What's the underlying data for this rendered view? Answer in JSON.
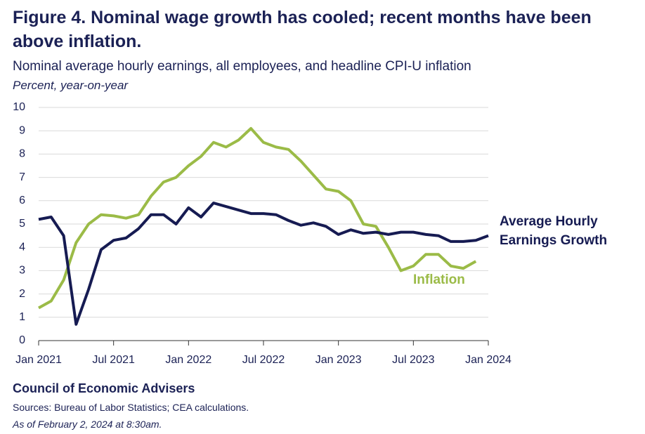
{
  "chart_data": {
    "type": "line",
    "title": "Figure 4. Nominal wage growth has cooled; recent months have been above inflation.",
    "subtitle": "Nominal average hourly earnings, all employees, and headline CPI-U inflation",
    "y_label": "Percent, year-on-year",
    "source_org": "Council of Economic Advisers",
    "sources": "Sources: Bureau of Labor Statistics; CEA calculations.",
    "note": "As of February 2, 2024 at 8:30am.",
    "categories": [
      "Jan 2021",
      null,
      null,
      null,
      null,
      null,
      "Jul 2021",
      null,
      null,
      null,
      null,
      null,
      "Jan 2022",
      null,
      null,
      null,
      null,
      null,
      "Jul 2022",
      null,
      null,
      null,
      null,
      null,
      "Jan 2023",
      null,
      null,
      null,
      null,
      null,
      "Jul 2023",
      null,
      null,
      null,
      null,
      null,
      "Jan 2024"
    ],
    "series": [
      {
        "name": "Average Hourly Earnings Growth",
        "color": "#161b52",
        "values": [
          5.2,
          5.3,
          4.5,
          0.7,
          2.2,
          3.9,
          4.3,
          4.4,
          4.8,
          5.4,
          5.4,
          5.0,
          5.7,
          5.3,
          5.9,
          5.75,
          5.6,
          5.45,
          5.45,
          5.4,
          5.15,
          4.95,
          5.05,
          4.9,
          4.55,
          4.75,
          4.6,
          4.65,
          4.55,
          4.65,
          4.65,
          4.55,
          4.5,
          4.25,
          4.25,
          4.3,
          4.5
        ]
      },
      {
        "name": "Inflation",
        "color": "#9bbb47",
        "values": [
          1.4,
          1.7,
          2.6,
          4.2,
          5.0,
          5.4,
          5.35,
          5.25,
          5.4,
          6.2,
          6.8,
          7.0,
          7.5,
          7.9,
          8.5,
          8.3,
          8.6,
          9.1,
          8.5,
          8.3,
          8.2,
          7.7,
          7.1,
          6.5,
          6.4,
          6.0,
          5.0,
          4.9,
          4.0,
          3.0,
          3.2,
          3.7,
          3.7,
          3.2,
          3.1,
          3.4,
          null
        ]
      }
    ],
    "ylim": [
      0,
      10
    ],
    "yticks": [
      0,
      1,
      2,
      3,
      4,
      5,
      6,
      7,
      8,
      9,
      10
    ],
    "grid": true
  }
}
